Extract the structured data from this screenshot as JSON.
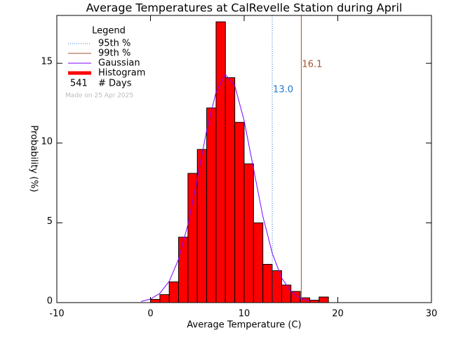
{
  "chart_data": {
    "type": "histogram",
    "title": "Average Temperatures at CalRevelle Station during April",
    "xlabel": "Average Temperature (C)",
    "ylabel": "Probability (%)",
    "bins": [
      0,
      1,
      2,
      3,
      4,
      5,
      6,
      7,
      8,
      9,
      10,
      11,
      12,
      13,
      14,
      15,
      16,
      17,
      18,
      19
    ],
    "counts": [
      0.2,
      0.5,
      1.3,
      4.1,
      8.1,
      9.6,
      12.2,
      17.6,
      14.1,
      11.3,
      8.7,
      5.0,
      2.4,
      2.0,
      1.1,
      0.7,
      0.3,
      0.15,
      0.35
    ],
    "color": "#ff0000",
    "edgecolor": "#000000",
    "xlim": [
      -10,
      30
    ],
    "xticks": [
      -10,
      0,
      10,
      20,
      30
    ],
    "ylim": [
      0,
      18
    ],
    "yticks": [
      0,
      5,
      10,
      15
    ],
    "gaussian": {
      "name": "Gaussian",
      "color": "#8000ff",
      "x": [
        -1,
        0,
        1,
        2,
        3,
        4,
        5,
        6,
        7,
        8,
        9,
        10,
        11,
        12,
        13,
        14,
        15,
        16,
        17
      ],
      "values": [
        0.07,
        0.22,
        0.58,
        1.34,
        2.72,
        4.9,
        7.75,
        10.8,
        13.2,
        14.3,
        13.6,
        11.4,
        8.4,
        5.4,
        3.1,
        1.55,
        0.68,
        0.27,
        0.09
      ]
    },
    "percentiles": [
      {
        "name": "95th %",
        "value": 13.0,
        "label": "13.0",
        "color": "#1f78d0",
        "style": "dotted"
      },
      {
        "name": "99th %",
        "value": 16.1,
        "label": "16.1",
        "color": "#a0522d",
        "style": "solid"
      }
    ],
    "legend_title": "Legend",
    "histogram_name": "Histogram",
    "days": 541,
    "days_label": "# Days",
    "note": "Made on 25 Apr 2025"
  }
}
